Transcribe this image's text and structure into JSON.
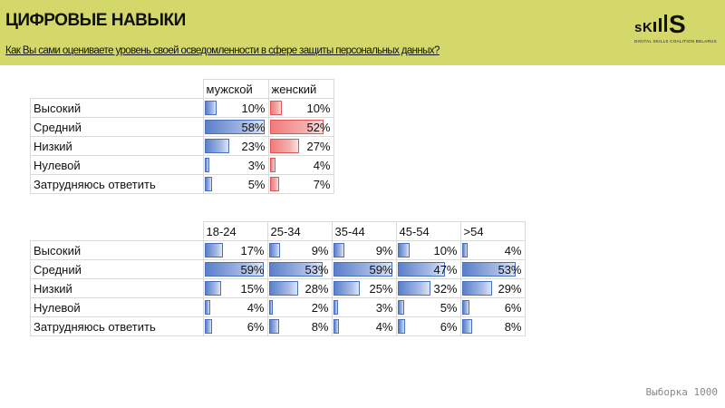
{
  "header": {
    "title": "ЦИФРОВЫЕ НАВЫКИ",
    "question": "Как Вы сами оцениваете уровень своей осведомленности в сфере защиты персональных данных?",
    "bg_color": "#d4d86a"
  },
  "logo": {
    "word": "sKIIIS",
    "tagline": "DIGITAL SKILLS COALITION BELARUS"
  },
  "footer": {
    "sample": "Выборка 1000"
  },
  "colors": {
    "male": "#5b7fc9",
    "female": "#ef7b7b",
    "age": "#5b7fc9"
  },
  "chart_data": [
    {
      "type": "table",
      "title": "",
      "categories": [
        "Высокий",
        "Средний",
        "Низкий",
        "Нулевой",
        "Затрудняюсь ответить"
      ],
      "series": [
        {
          "name": "мужской",
          "values": [
            10,
            58,
            23,
            3,
            5
          ],
          "labels": [
            "10%",
            "58%",
            "23%",
            "3%",
            "5%"
          ],
          "color": "blue"
        },
        {
          "name": "женский",
          "values": [
            10,
            52,
            27,
            4,
            7
          ],
          "labels": [
            "10%",
            "52%",
            "27%",
            "4%",
            "7%"
          ],
          "color": "red"
        }
      ],
      "max": 58
    },
    {
      "type": "table",
      "title": "",
      "categories": [
        "Высокий",
        "Средний",
        "Низкий",
        "Нулевой",
        "Затрудняюсь ответить"
      ],
      "series": [
        {
          "name": "18-24",
          "values": [
            17,
            59,
            15,
            4,
            6
          ],
          "labels": [
            "17%",
            "59%",
            "15%",
            "4%",
            "6%"
          ],
          "color": "blue"
        },
        {
          "name": "25-34",
          "values": [
            9,
            53,
            28,
            2,
            8
          ],
          "labels": [
            "9%",
            "53%",
            "28%",
            "2%",
            "8%"
          ],
          "color": "blue"
        },
        {
          "name": "35-44",
          "values": [
            9,
            59,
            25,
            3,
            4
          ],
          "labels": [
            "9%",
            "59%",
            "25%",
            "3%",
            "4%"
          ],
          "color": "blue"
        },
        {
          "name": "45-54",
          "values": [
            10,
            47,
            32,
            5,
            6
          ],
          "labels": [
            "10%",
            "47%",
            "32%",
            "5%",
            "6%"
          ],
          "color": "blue"
        },
        {
          "name": ">54",
          "values": [
            4,
            53,
            29,
            6,
            8
          ],
          "labels": [
            "4%",
            "53%",
            "29%",
            "6%",
            "8%"
          ],
          "color": "blue"
        }
      ],
      "max": 59
    }
  ]
}
